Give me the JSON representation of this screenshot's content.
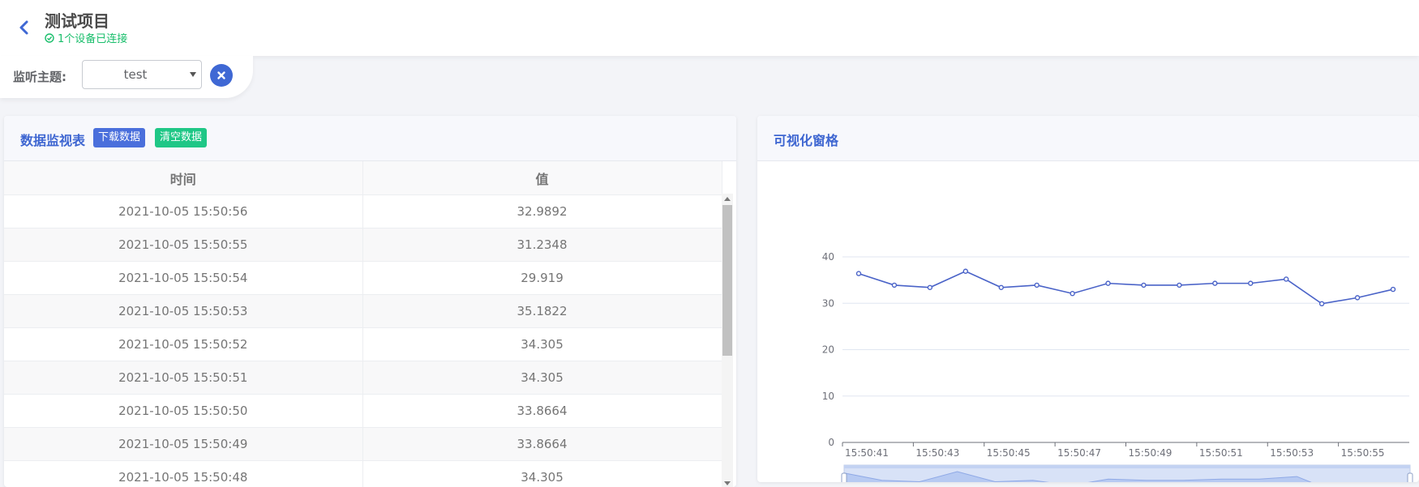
{
  "header": {
    "title": "测试项目",
    "status": "1个设备已连接",
    "status_color": "#19be6b",
    "back_icon": "chevron-left-icon"
  },
  "topic": {
    "label": "监听主题:",
    "selected": "test",
    "clear_icon": "close-circle-icon"
  },
  "table_panel": {
    "title": "数据监视表",
    "download_label": "下载数据",
    "clear_label": "清空数据",
    "columns": [
      "时间",
      "值"
    ],
    "rows": [
      [
        "2021-10-05 15:50:56",
        "32.9892"
      ],
      [
        "2021-10-05 15:50:55",
        "31.2348"
      ],
      [
        "2021-10-05 15:50:54",
        "29.919"
      ],
      [
        "2021-10-05 15:50:53",
        "35.1822"
      ],
      [
        "2021-10-05 15:50:52",
        "34.305"
      ],
      [
        "2021-10-05 15:50:51",
        "34.305"
      ],
      [
        "2021-10-05 15:50:50",
        "33.8664"
      ],
      [
        "2021-10-05 15:50:49",
        "33.8664"
      ],
      [
        "2021-10-05 15:50:48",
        "34.305"
      ]
    ]
  },
  "chart_panel": {
    "title": "可视化窗格"
  },
  "chart_data": {
    "type": "line",
    "x": [
      "15:50:41",
      "15:50:42",
      "15:50:43",
      "15:50:44",
      "15:50:45",
      "15:50:46",
      "15:50:47",
      "15:50:48",
      "15:50:49",
      "15:50:50",
      "15:50:51",
      "15:50:52",
      "15:50:53",
      "15:50:54",
      "15:50:55",
      "15:50:56"
    ],
    "x_tick_labels": [
      "15:50:41",
      "15:50:43",
      "15:50:45",
      "15:50:47",
      "15:50:49",
      "15:50:51",
      "15:50:53",
      "15:50:55"
    ],
    "series": [
      {
        "values": [
          36.4,
          33.9,
          33.4,
          36.9,
          33.4,
          33.9,
          32.1,
          34.3,
          33.9,
          33.9,
          34.3,
          34.3,
          35.2,
          29.9,
          31.2,
          33.0
        ],
        "color": "#4a63c8"
      }
    ],
    "y_ticks": [
      0,
      10,
      20,
      30,
      40
    ],
    "ylim": [
      0,
      40
    ],
    "grid": true,
    "dataZoom": true,
    "legend": "none"
  }
}
